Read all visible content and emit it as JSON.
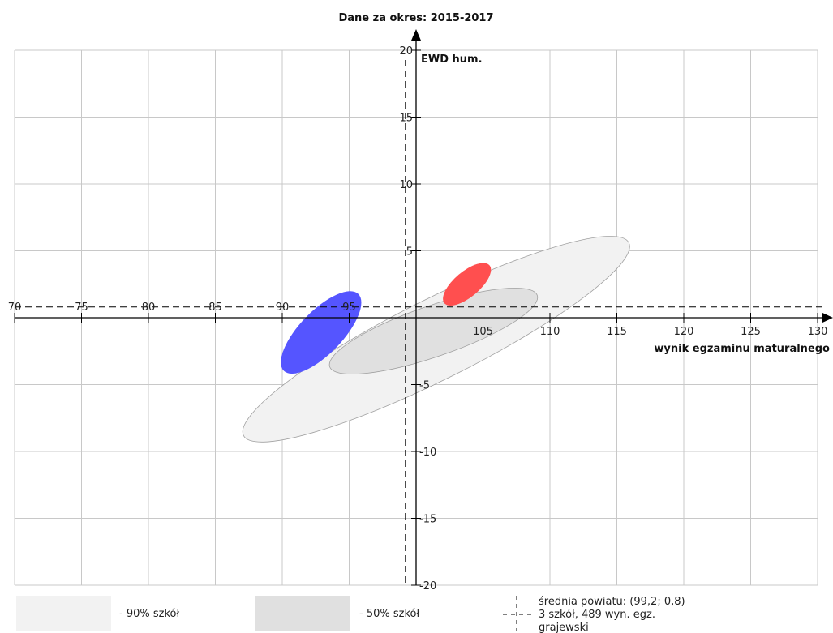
{
  "chart_data": {
    "type": "scatter",
    "title": "Dane za okres: 2015-2017",
    "xlabel": "wynik egzaminu maturalnego",
    "ylabel": "EWD hum.",
    "xlim": [
      70,
      130
    ],
    "ylim": [
      -20,
      20
    ],
    "x_ticks": [
      70,
      75,
      80,
      85,
      90,
      95,
      105,
      110,
      115,
      120,
      125,
      130
    ],
    "y_ticks": [
      20,
      15,
      10,
      5,
      -5,
      -10,
      -15,
      -20
    ],
    "grid": true,
    "regions": [
      {
        "kind": "90",
        "cx": 101.5,
        "cy": -1.6,
        "rx": 16.1,
        "ry": 3.0,
        "angle_deg": -26.6,
        "color": "#f2f2f2"
      },
      {
        "kind": "50",
        "cx": 101.3,
        "cy": -1.0,
        "rx": 8.2,
        "ry": 1.9,
        "angle_deg": -19,
        "color": "#e0e0e0"
      }
    ],
    "schools": [
      {
        "cx": 92.9,
        "cy": -1.1,
        "rx": 4.0,
        "ry": 1.6,
        "angle_deg": -46,
        "color": "#5555ff"
      },
      {
        "cx": 103.8,
        "cy": 2.5,
        "rx": 2.2,
        "ry": 0.95,
        "angle_deg": -40,
        "color": "#ff4f4f"
      }
    ],
    "mean_powiat": {
      "x": 99.2,
      "y": 0.8
    }
  },
  "legend": {
    "p90": "- 90% szkół",
    "p50": "- 50% szkół",
    "mean_line1": "średnia powiatu: (99,2; 0,8)",
    "mean_line2": "3 szkół, 489 wyn. egz.",
    "mean_line3": "grajewski"
  },
  "colors": {
    "grid": "#c8c8c8",
    "axis": "#000000",
    "legend_90": "#f2f2f2",
    "legend_50": "#e0e0e0"
  }
}
